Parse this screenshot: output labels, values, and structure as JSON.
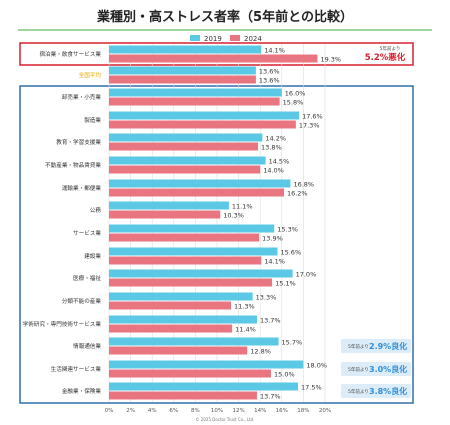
{
  "chart_data": {
    "type": "bar",
    "orientation": "horizontal",
    "title": "業種別・高ストレス者率（5年前との比較）",
    "legend_position": "top",
    "grid": true,
    "xlim": [
      0,
      20
    ],
    "ticks": [
      "0%",
      "2%",
      "4%",
      "6%",
      "8%",
      "10%",
      "12%",
      "14%",
      "16%",
      "18%",
      "20%"
    ],
    "categories": [
      "宿泊業・飲食サービス業",
      "全国平均",
      "卸売業・小売業",
      "製造業",
      "教育・学習支援業",
      "不動産業・物品賃貸業",
      "運輸業・郵便業",
      "公務",
      "サービス業",
      "建設業",
      "医療・福祉",
      "分類不能の産業",
      "学術研究・専門技術サービス業",
      "情報通信業",
      "生活関連サービス業",
      "金融業・保険業"
    ],
    "series": [
      {
        "name": "2019",
        "color": "#5bc8e6",
        "values": [
          14.1,
          13.6,
          16.0,
          17.6,
          14.2,
          14.5,
          16.8,
          11.1,
          15.3,
          15.6,
          17.0,
          13.3,
          13.7,
          15.7,
          18.0,
          17.5
        ],
        "labels": [
          "14.1%",
          "13.6%",
          "16.0%",
          "17.6%",
          "14.2%",
          "14.5%",
          "16.8%",
          "11.1%",
          "15.3%",
          "15.6%",
          "17.0%",
          "13.3%",
          "13.7%",
          "15.7%",
          "18.0%",
          "17.5%"
        ]
      },
      {
        "name": "2024",
        "color": "#e8757f",
        "values": [
          19.3,
          13.6,
          15.8,
          17.3,
          13.8,
          14.0,
          16.2,
          10.3,
          13.9,
          14.1,
          15.1,
          11.3,
          11.4,
          12.8,
          15.0,
          13.7
        ],
        "labels": [
          "19.3%",
          "13.6%",
          "15.8%",
          "17.3%",
          "13.8%",
          "14.0%",
          "16.2%",
          "10.3%",
          "13.9%",
          "14.1%",
          "15.1%",
          "11.3%",
          "11.4%",
          "12.8%",
          "15.0%",
          "13.7%"
        ]
      }
    ],
    "annotations": [
      {
        "row": 0,
        "small": "5年前より",
        "big": "5.2%悪化",
        "tone": "bad"
      },
      {
        "row": 13,
        "small": "5年前より",
        "big": "2.9%良化",
        "tone": "good"
      },
      {
        "row": 14,
        "small": "5年前より",
        "big": "3.0%良化",
        "tone": "good"
      },
      {
        "row": 15,
        "small": "5年前より",
        "big": "3.8%良化",
        "tone": "good"
      }
    ],
    "copyright": "© 2025 Doctor Trust Co., Ltd."
  },
  "colors": {
    "title_underline": "#7ec87a",
    "highlight_border": "#d7202e",
    "average_label": "#e6a800",
    "group_border": "#2f6ea8",
    "bad_text": "#d7202e",
    "good_text": "#2f8fd8",
    "good_callout_bg": "#dcecf8",
    "grid": "#dcdcdc"
  }
}
